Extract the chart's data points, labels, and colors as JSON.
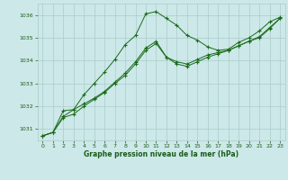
{
  "background_color": "#cce8e8",
  "grid_color": "#aacccc",
  "line_color": "#1a6b1a",
  "marker_color": "#1a6b1a",
  "title": "Graphe pression niveau de la mer (hPa)",
  "title_color": "#1a5c1a",
  "x_ticks": [
    0,
    1,
    2,
    3,
    4,
    5,
    6,
    7,
    8,
    9,
    10,
    11,
    12,
    13,
    14,
    15,
    16,
    17,
    18,
    19,
    20,
    21,
    22,
    23
  ],
  "y_ticks": [
    1031,
    1032,
    1033,
    1034,
    1035,
    1036
  ],
  "ylim": [
    1030.5,
    1036.5
  ],
  "xlim": [
    -0.5,
    23.5
  ],
  "series1": [
    1030.7,
    1030.85,
    1031.8,
    1031.85,
    1032.5,
    1033.0,
    1033.5,
    1034.05,
    1034.7,
    1035.1,
    1036.05,
    1036.15,
    1035.85,
    1035.55,
    1035.1,
    1034.9,
    1034.6,
    1034.45,
    1034.5,
    1034.8,
    1035.0,
    1035.3,
    1035.7,
    1035.9
  ],
  "series2": [
    1030.7,
    1030.85,
    1031.55,
    1031.85,
    1032.1,
    1032.35,
    1032.65,
    1033.05,
    1033.45,
    1033.95,
    1034.55,
    1034.85,
    1034.15,
    1033.95,
    1033.85,
    1034.05,
    1034.25,
    1034.35,
    1034.45,
    1034.65,
    1034.85,
    1035.05,
    1035.45,
    1035.85
  ],
  "series3": [
    1030.7,
    1030.85,
    1031.5,
    1031.65,
    1032.0,
    1032.3,
    1032.6,
    1033.0,
    1033.35,
    1033.85,
    1034.45,
    1034.75,
    1034.15,
    1033.85,
    1033.75,
    1033.95,
    1034.15,
    1034.3,
    1034.45,
    1034.65,
    1034.85,
    1035.0,
    1035.4,
    1035.85
  ]
}
